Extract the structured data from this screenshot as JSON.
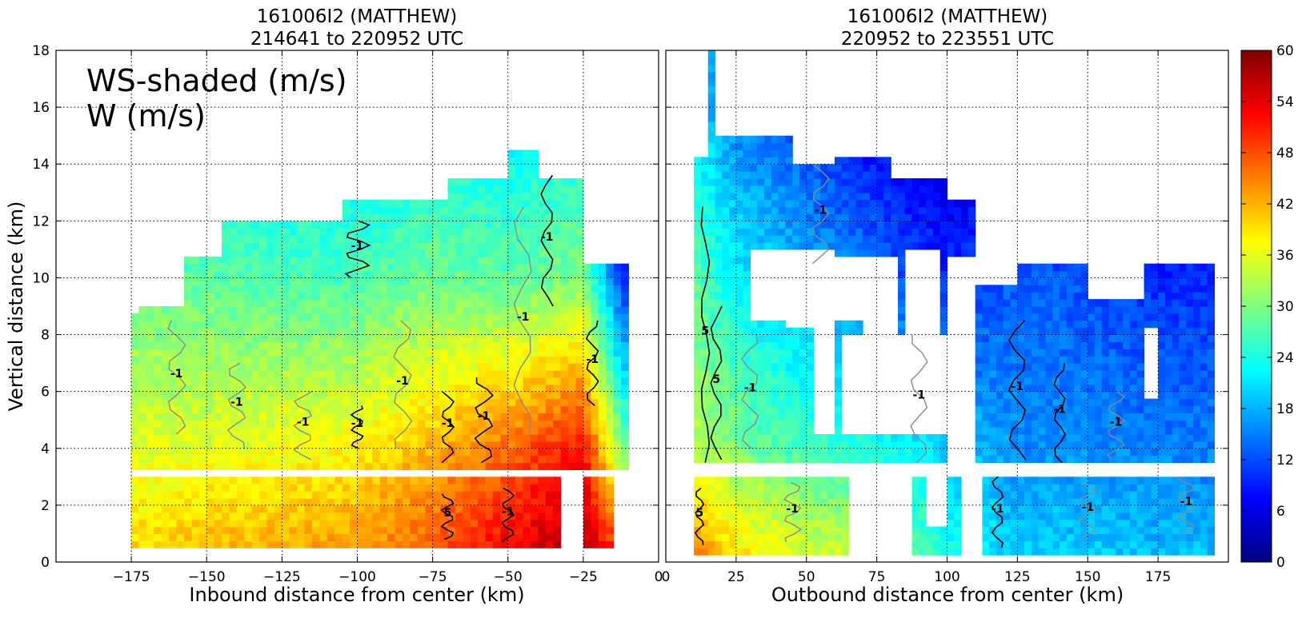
{
  "chart_data": [
    {
      "type": "heatmap",
      "title": "161006I2 (MATTHEW)",
      "subtitle": "214641 to 220952 UTC",
      "overlay_text": [
        "WS-shaded (m/s)",
        "W (m/s)"
      ],
      "xlabel": "Inbound distance from center (km)",
      "ylabel": "Vertical distance (km)",
      "xlim": [
        -200,
        0
      ],
      "ylim": [
        0,
        18
      ],
      "xticks": [
        "−175",
        "−150",
        "−125",
        "−100",
        "−75",
        "−50",
        "−25",
        "0"
      ],
      "xtick_values": [
        -175,
        -150,
        -125,
        -100,
        -75,
        -50,
        -25,
        0
      ],
      "yticks": [
        "0",
        "2",
        "4",
        "6",
        "8",
        "10",
        "12",
        "14",
        "16",
        "18"
      ],
      "ytick_values": [
        0,
        2,
        4,
        6,
        8,
        10,
        12,
        14,
        16,
        18
      ],
      "grid": true,
      "contour_labels": [
        "-1",
        "-1",
        "-1",
        "-1",
        "-1",
        "-1",
        "-1",
        "-1",
        "-1",
        "-1",
        "-1",
        "-1",
        "5"
      ],
      "ws_profile": {
        "x_km": [
          -175,
          -150,
          -125,
          -100,
          -75,
          -50,
          -25,
          -12
        ],
        "low_level_ws": [
          40,
          42,
          43,
          44,
          48,
          54,
          58,
          50
        ],
        "mid_level_ws": [
          36,
          36,
          37,
          38,
          42,
          46,
          52,
          30
        ],
        "upper_level_ws": [
          28,
          28,
          27,
          27,
          29,
          28,
          30,
          10
        ]
      }
    },
    {
      "type": "heatmap",
      "title": "161006I2 (MATTHEW)",
      "subtitle": "220952 to 223551 UTC",
      "xlabel": "Outbound distance from center (km)",
      "xlim": [
        0,
        200
      ],
      "ylim": [
        0,
        18
      ],
      "xticks": [
        "0",
        "25",
        "50",
        "75",
        "100",
        "125",
        "150",
        "175"
      ],
      "xtick_values": [
        0,
        25,
        50,
        75,
        100,
        125,
        150,
        175
      ],
      "yticks": [
        "0",
        "2",
        "4",
        "6",
        "8",
        "10",
        "12",
        "14",
        "16",
        "18"
      ],
      "ytick_values": [
        0,
        2,
        4,
        6,
        8,
        10,
        12,
        14,
        16,
        18
      ],
      "grid": true,
      "contour_labels": [
        "5",
        "5",
        "5",
        "-1",
        "-1",
        "-1",
        "-1",
        "-1",
        "-1",
        "-1",
        "-1",
        "-1",
        "-1"
      ],
      "ws_profile": {
        "x_km": [
          10,
          25,
          50,
          75,
          100,
          125,
          150,
          175,
          195
        ],
        "low_level_ws": [
          46,
          40,
          36,
          34,
          24,
          20,
          20,
          19,
          19
        ],
        "mid_level_ws": [
          34,
          30,
          26,
          24,
          20,
          16,
          16,
          15,
          15
        ],
        "upper_level_ws": [
          28,
          22,
          18,
          14,
          10,
          13,
          12,
          10,
          10
        ]
      }
    }
  ],
  "colorbar": {
    "label": "",
    "range": [
      0,
      60
    ],
    "ticks": [
      "0",
      "6",
      "12",
      "18",
      "24",
      "30",
      "36",
      "42",
      "48",
      "54",
      "60"
    ],
    "colormap": [
      "#00007f",
      "#0000ff",
      "#007fff",
      "#00ffff",
      "#7fff7f",
      "#ffff00",
      "#ff7f00",
      "#ff0000",
      "#7f0000"
    ]
  }
}
